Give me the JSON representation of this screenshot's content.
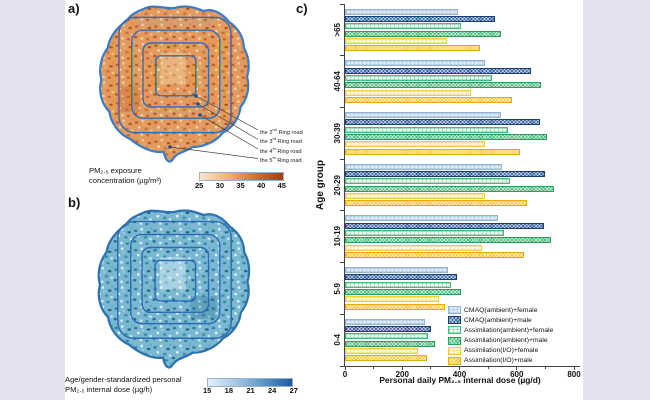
{
  "figure": {
    "background_outer": "#e3e3f0",
    "background_content": "#ffffff"
  },
  "panel_a": {
    "label": "a)",
    "map": "PM2.5 exposure concentration map of city with ring roads",
    "map_base_color": "#e29a5f",
    "ring_color": "#2f6fba",
    "outline_color": "#3c7cc4",
    "annotations": [
      {
        "pre": "the 2",
        "sup": "nd",
        "post": " Ring road"
      },
      {
        "pre": "the 3",
        "sup": "rd",
        "post": " Ring road"
      },
      {
        "pre": "the 4",
        "sup": "th",
        "post": " Ring road"
      },
      {
        "pre": "the 5",
        "sup": "th",
        "post": " Ring road"
      }
    ],
    "colorbar": {
      "title_line1": "PM₂.₅  exposure",
      "title_line2": "concentration (µg/m³)",
      "ticks": [
        "25",
        "30",
        "35",
        "40",
        "45"
      ],
      "gradient": [
        "#f9e7cd",
        "#f0b377",
        "#d0722e",
        "#a63f0d"
      ]
    }
  },
  "panel_b": {
    "label": "b)",
    "map": "Age/gender-standardized personal PM2.5 internal dose map",
    "map_base_color": "#7ab8d2",
    "ring_color": "#2a6db5",
    "outline_color": "#2d72ae",
    "colorbar": {
      "title_line1": "Age/gender-standardized personal",
      "title_line2": "PM₂.₅ internal dose (µg/h)",
      "ticks": [
        "15",
        "18",
        "21",
        "24",
        "27"
      ],
      "gradient": [
        "#e3f0fa",
        "#a7c9e4",
        "#5b93c4",
        "#1d5a9e"
      ]
    }
  },
  "panel_c": {
    "label": "c)",
    "chart_data": {
      "type": "bar",
      "orientation": "horizontal",
      "title": "",
      "xlabel": "Personal daily PM₂.₅ internal dose (µg/d)",
      "ylabel": "Age group",
      "xlim": [
        0,
        800
      ],
      "xticks": [
        0,
        200,
        400,
        600,
        800
      ],
      "minor_xticks": [
        100,
        300,
        500,
        700
      ],
      "grid": false,
      "legend_position": "lower right",
      "categories": [
        ">65",
        "40-64",
        "30-39",
        "20-29",
        "10-19",
        "5-9",
        "0-4"
      ],
      "series": [
        {
          "name": "CMAQ(ambient)+female",
          "pattern": "light-grid",
          "fill": "#dfe9f3",
          "border": "#92b4d2",
          "values": [
            395,
            490,
            545,
            550,
            535,
            360,
            280
          ]
        },
        {
          "name": "CMAQ(ambient)+male",
          "pattern": "crosshatch",
          "fill": "#2a5699",
          "border": "#17406e",
          "values": [
            525,
            650,
            680,
            700,
            695,
            390,
            300
          ]
        },
        {
          "name": "Assimilation(ambient)+female",
          "pattern": "light-grid",
          "fill": "#f0faf4",
          "border": "#46bc7c",
          "values": [
            405,
            515,
            570,
            575,
            555,
            370,
            290
          ]
        },
        {
          "name": "Assimilation(ambient)+male",
          "pattern": "crosshatch",
          "fill": "#3fba78",
          "border": "#2d9e5f",
          "values": [
            545,
            685,
            705,
            730,
            720,
            405,
            315
          ]
        },
        {
          "name": "Assimilation(I/O)+female",
          "pattern": "light-grid",
          "fill": "#fdf9e4",
          "border": "#f3cb42",
          "values": [
            355,
            440,
            490,
            490,
            480,
            330,
            255
          ]
        },
        {
          "name": "Assimilation(I/O)+male",
          "pattern": "crosshatch",
          "fill": "#fdc32f",
          "border": "#e5a912",
          "values": [
            470,
            585,
            610,
            635,
            625,
            350,
            285
          ]
        }
      ]
    }
  }
}
